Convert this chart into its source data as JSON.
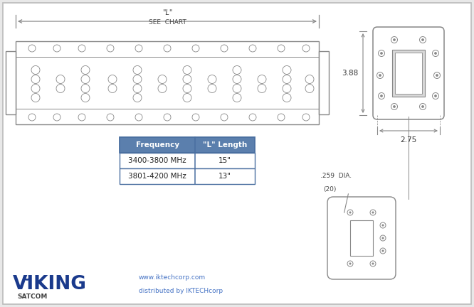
{
  "bg_color": "#e8e8e8",
  "drawing_bg": "#ffffff",
  "border_color": "#bbbbbb",
  "lc": "#888888",
  "blue_header": "#5b7fad",
  "table_border": "#4a6fa0",
  "freq_header": "Frequency",
  "len_header": "\"L\" Length",
  "row1_freq": "3400-3800 MHz",
  "row1_len": "15\"",
  "row2_freq": "3801-4200 MHz",
  "row2_len": "13\"",
  "viking_blue": "#1a3a8c",
  "satcom_text": "SATCOM",
  "web_color": "#4472c4",
  "web_line1": "www.iktechcorp.com",
  "web_line2": "distributed by IKTECHcorp",
  "dim_388": "3.88",
  "dim_275": "2.75",
  "dim_259_line1": ".259  DIA.",
  "dim_259_line2": "(20)"
}
